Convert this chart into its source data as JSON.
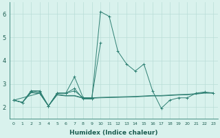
{
  "xlabel": "Humidex (Indice chaleur)",
  "x": [
    0,
    1,
    2,
    3,
    4,
    5,
    6,
    7,
    8,
    9,
    10,
    11,
    12,
    13,
    14,
    15,
    16,
    17,
    18,
    19,
    20,
    21,
    22,
    23
  ],
  "line1_y": [
    2.3,
    2.2,
    2.7,
    2.7,
    2.05,
    2.6,
    2.6,
    2.8,
    2.35,
    2.35,
    6.1,
    5.9,
    4.4,
    3.85,
    3.55,
    3.85,
    2.7,
    1.95,
    2.3,
    2.4,
    2.4,
    2.6,
    2.65,
    2.6
  ],
  "line2_x": [
    0,
    1,
    2,
    3,
    4,
    5,
    6,
    7,
    8,
    9,
    10
  ],
  "line2_y": [
    2.3,
    2.2,
    2.7,
    2.65,
    2.05,
    2.6,
    2.6,
    3.3,
    2.4,
    2.4,
    4.75
  ],
  "line3_x": [
    0,
    3,
    4,
    5,
    6,
    7,
    8,
    9
  ],
  "line3_y": [
    2.3,
    2.6,
    2.05,
    2.6,
    2.6,
    2.7,
    2.4,
    2.35
  ],
  "flat1_x": [
    0,
    1,
    2,
    3,
    4,
    5,
    6,
    7,
    8,
    9,
    10,
    11,
    12,
    13,
    14,
    15,
    16,
    17,
    18,
    19,
    20,
    21,
    22,
    23
  ],
  "flat1_y": [
    2.3,
    2.2,
    2.65,
    2.6,
    2.05,
    2.55,
    2.5,
    2.5,
    2.4,
    2.4,
    2.42,
    2.43,
    2.44,
    2.45,
    2.46,
    2.48,
    2.5,
    2.5,
    2.52,
    2.54,
    2.55,
    2.58,
    2.62,
    2.62
  ],
  "flat2_x": [
    0,
    1,
    2,
    3,
    4,
    5,
    6,
    7,
    8,
    9,
    10,
    11,
    12,
    13,
    14,
    15,
    16,
    17,
    18,
    19,
    20,
    21,
    22,
    23
  ],
  "flat2_y": [
    2.3,
    2.2,
    2.62,
    2.58,
    2.05,
    2.52,
    2.48,
    2.48,
    2.38,
    2.38,
    2.4,
    2.41,
    2.42,
    2.43,
    2.44,
    2.46,
    2.48,
    2.48,
    2.5,
    2.52,
    2.53,
    2.56,
    2.6,
    2.6
  ],
  "line_color": "#2d7f72",
  "bg_color": "#d9f2ed",
  "grid_color": "#b8ddd7",
  "ylim": [
    1.5,
    6.5
  ],
  "yticks": [
    2,
    3,
    4,
    5,
    6
  ],
  "xticks": [
    0,
    1,
    2,
    3,
    4,
    5,
    6,
    7,
    8,
    9,
    10,
    11,
    12,
    13,
    14,
    15,
    16,
    17,
    18,
    19,
    20,
    21,
    22,
    23
  ]
}
